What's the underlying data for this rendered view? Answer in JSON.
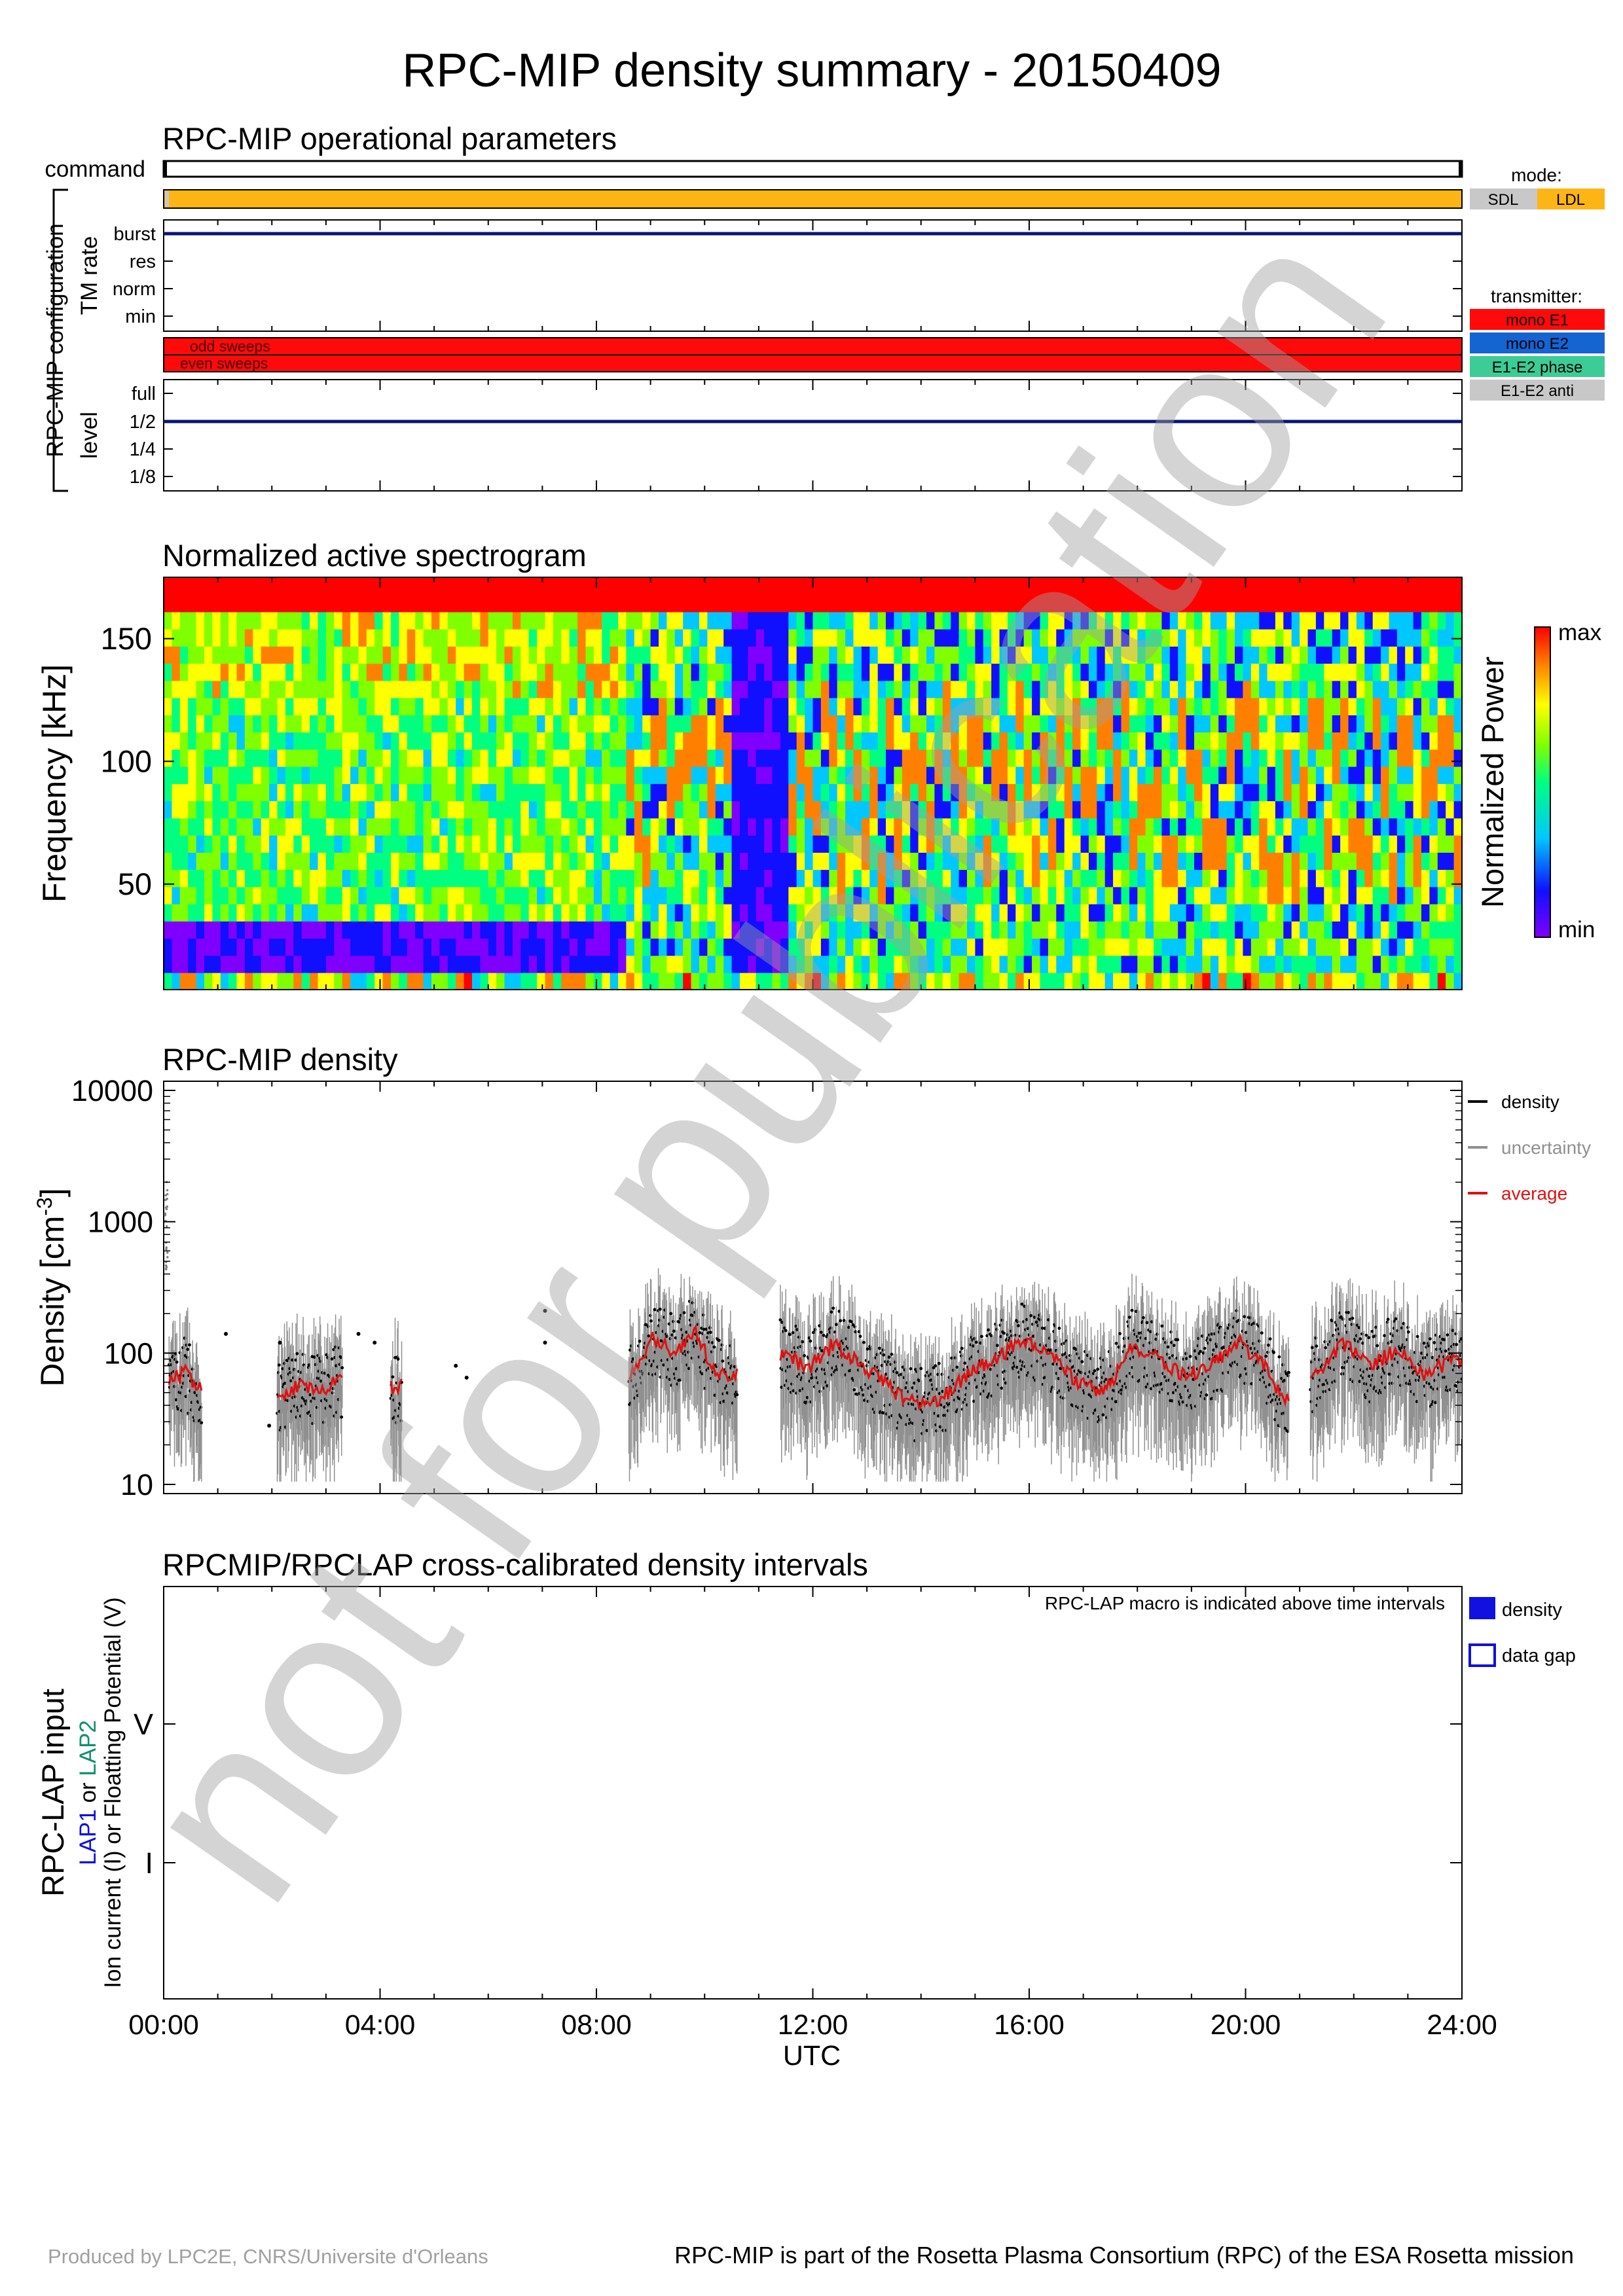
{
  "page": {
    "title": "RPC-MIP density summary - 20150409",
    "watermark": "not for publication",
    "footer_left": "Produced by LPC2E, CNRS/Universite d'Orleans",
    "footer_right": "RPC-MIP is part of the Rosetta Plasma Consortium (RPC) of the ESA Rosetta mission"
  },
  "colors": {
    "orange": "#fdb515",
    "navy": "#0a1470",
    "red": "#ff0a0a",
    "blue": "#1464d2",
    "teal": "#3ccc96",
    "gray": "#c8c8c8",
    "density_red": "#e01010",
    "uncert_gray": "#909090",
    "lap_blue": "#1010e0",
    "lap_teal": "#109070"
  },
  "ops": {
    "title": "RPC-MIP operational parameters",
    "command_label": "command",
    "group_label": "RPC-MIP configuration",
    "tm_rate_label": "TM rate",
    "tm_levels": [
      "burst",
      "res",
      "norm",
      "min"
    ],
    "tm_value": "burst",
    "odd_label": "odd sweeps",
    "even_label": "even sweeps",
    "level_label": "level",
    "levels": [
      "full",
      "1/2",
      "1/4",
      "1/8"
    ],
    "level_value": "1/2",
    "mode_title": "mode:",
    "mode_items": [
      "SDL",
      "LDL"
    ],
    "mode_value": "LDL",
    "transmitter_title": "transmitter:",
    "transmitter_items": [
      "mono E1",
      "mono E2",
      "E1-E2 phase",
      "E1-E2 anti"
    ],
    "transmitter_value": "mono E1"
  },
  "spec": {
    "title": "Normalized active spectrogram",
    "ylabel": "Frequency [kHz]",
    "yticks": [
      50,
      100,
      150
    ],
    "ylim": [
      7,
      175
    ],
    "colorbar_label": "Normalized Power",
    "cb_max": "max",
    "cb_min": "min"
  },
  "density": {
    "title": "RPC-MIP density",
    "ylabel": "Density [cm",
    "ylabel_exp": "-3",
    "ylabel_close": "]",
    "yticks": [
      "10",
      "100",
      "1000",
      "10000"
    ],
    "legend": [
      "density",
      "uncertainty",
      "average"
    ]
  },
  "lap": {
    "title": "RPCMIP/RPCLAP cross-calibrated density intervals",
    "note": "RPC-LAP macro is indicated above time intervals",
    "ylabel_main": "RPC-LAP input",
    "ylabel_lap1": "LAP1",
    "ylabel_or": " or ",
    "ylabel_lap2": "LAP2",
    "ylabel_sub": "Ion current (I) or Floatting Potential (V)",
    "yticks": [
      "V",
      "I"
    ],
    "legend": [
      "density",
      "data gap"
    ]
  },
  "xaxis": {
    "ticks": [
      "00:00",
      "04:00",
      "08:00",
      "12:00",
      "16:00",
      "20:00",
      "24:00"
    ],
    "label": "UTC"
  },
  "chart_data": [
    {
      "type": "heatmap",
      "title": "Normalized active spectrogram",
      "xlabel": "UTC",
      "ylabel": "Frequency [kHz]",
      "x_range_hours": [
        0,
        24
      ],
      "ylim": [
        7,
        175
      ],
      "colorscale": [
        "#8000ff",
        "#1010ff",
        "#00c8ff",
        "#00ff80",
        "#80ff00",
        "#ffff00",
        "#ff8000",
        "#ff0000"
      ],
      "bands_khz": [
        [
          160,
          175,
          "max"
        ],
        [
          20,
          40,
          "low"
        ]
      ]
    },
    {
      "type": "scatter",
      "title": "RPC-MIP density",
      "xlabel": "UTC",
      "ylabel": "Density [cm-3]",
      "yscale": "log",
      "ylim": [
        10,
        10000
      ],
      "x_range_hours": [
        0,
        24
      ],
      "series": [
        {
          "name": "average",
          "x": [
            0.1,
            0.4,
            0.6,
            2.2,
            2.5,
            2.8,
            3.2,
            4.3,
            8.7,
            9.0,
            9.5,
            9.8,
            10.2,
            10.5,
            11.5,
            11.9,
            12.4,
            12.9,
            13.4,
            13.9,
            14.4,
            14.9,
            15.4,
            15.9,
            16.4,
            16.9,
            17.4,
            17.9,
            18.4,
            18.9,
            19.4,
            19.9,
            20.4,
            20.7,
            21.3,
            21.8,
            22.3,
            22.8,
            23.3,
            23.9
          ],
          "y": [
            60,
            70,
            55,
            48,
            55,
            52,
            60,
            55,
            70,
            130,
            100,
            150,
            70,
            65,
            100,
            75,
            120,
            80,
            55,
            40,
            45,
            70,
            90,
            130,
            95,
            60,
            50,
            115,
            90,
            65,
            85,
            120,
            75,
            45,
            70,
            120,
            80,
            105,
            70,
            90
          ]
        }
      ],
      "legend": [
        "density",
        "uncertainty",
        "average"
      ]
    },
    {
      "type": "table",
      "title": "RPCMIP/RPCLAP cross-calibrated density intervals",
      "ylabel": "RPC-LAP input",
      "intervals": []
    }
  ]
}
